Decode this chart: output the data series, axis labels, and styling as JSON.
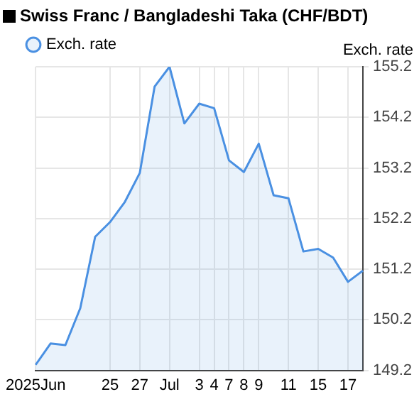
{
  "chart_data": {
    "type": "area",
    "title": "Swiss Franc / Bangladeshi Taka (CHF/BDT)",
    "ylabel": "Exch. rate",
    "categories": [
      "2025Jun",
      null,
      null,
      null,
      null,
      "25",
      null,
      "27",
      null,
      "Jul",
      null,
      "3",
      "4",
      "7",
      "8",
      "9",
      null,
      "11",
      null,
      "15",
      null,
      "17",
      null
    ],
    "series": [
      {
        "name": "Exch. rate",
        "color": "#4a90e2",
        "values": [
          149.31,
          149.73,
          149.7,
          150.43,
          151.84,
          152.13,
          152.53,
          153.1,
          154.81,
          155.2,
          154.08,
          154.47,
          154.38,
          153.35,
          153.12,
          153.68,
          152.66,
          152.6,
          151.55,
          151.6,
          151.43,
          150.95,
          151.17
        ]
      }
    ],
    "ylim": [
      149.2,
      155.2
    ],
    "yticks": [
      149.2,
      150.2,
      151.2,
      152.2,
      153.2,
      154.2,
      155.2
    ],
    "grid": true,
    "legend": "top left",
    "marker": "none"
  }
}
